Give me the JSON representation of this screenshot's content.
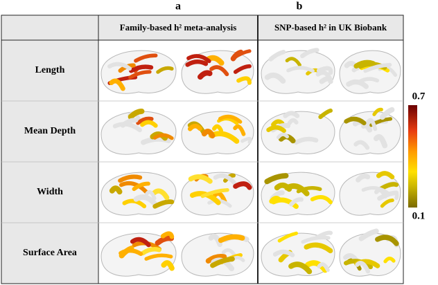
{
  "panels": [
    "a",
    "b"
  ],
  "table": {
    "header": [
      "Family-based h² meta-analysis",
      "SNP-based h² in UK Biobank"
    ],
    "rows": [
      "Length",
      "Mean Depth",
      "Width",
      "Surface Area"
    ]
  },
  "colorbar": {
    "max": 0.7,
    "min": 0.1
  }
}
